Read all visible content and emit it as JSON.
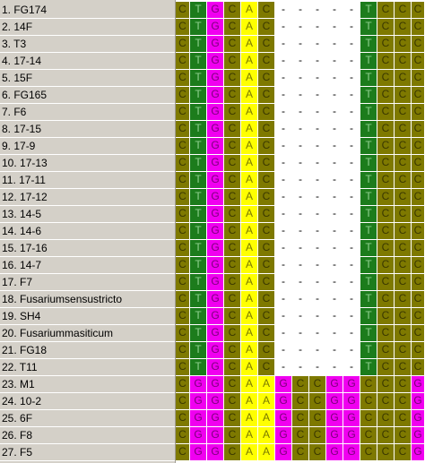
{
  "colors": {
    "C": "#7e7900",
    "T": "#1c7c1c",
    "G": "#f000f0",
    "A": "#ffff00",
    "-": "#ffffff"
  },
  "text_colors": {
    "C": "#3a3800",
    "T": "#8fd08f",
    "G": "#7a007a",
    "A": "#7a7a00",
    "-": "#000000"
  },
  "rows": [
    {
      "name": "1. FG174",
      "seq": "CTGCAC-----TCCC"
    },
    {
      "name": "2. 14F",
      "seq": "CTGCAC-----TCCC"
    },
    {
      "name": "3. T3",
      "seq": "CTGCAC-----TCCC"
    },
    {
      "name": "4. 17-14",
      "seq": "CTGCAC-----TCCC"
    },
    {
      "name": "5. 15F",
      "seq": "CTGCAC-----TCCC"
    },
    {
      "name": "6. FG165",
      "seq": "CTGCAC-----TCCC"
    },
    {
      "name": "7. F6",
      "seq": "CTGCAC-----TCCC"
    },
    {
      "name": "8. 17-15",
      "seq": "CTGCAC-----TCCC"
    },
    {
      "name": "9. 17-9",
      "seq": "CTGCAC-----TCCC"
    },
    {
      "name": "10. 17-13",
      "seq": "CTGCAC-----TCCC"
    },
    {
      "name": "11. 17-11",
      "seq": "CTGCAC-----TCCC"
    },
    {
      "name": "12. 17-12",
      "seq": "CTGCAC-----TCCC"
    },
    {
      "name": "13. 14-5",
      "seq": "CTGCAC-----TCCC"
    },
    {
      "name": "14. 14-6",
      "seq": "CTGCAC-----TCCC"
    },
    {
      "name": "15. 17-16",
      "seq": "CTGCAC-----TCCC"
    },
    {
      "name": "16. 14-7",
      "seq": "CTGCAC-----TCCC"
    },
    {
      "name": "17. F7",
      "seq": "CTGCAC-----TCCC"
    },
    {
      "name": "18. Fusariumsensustricto",
      "seq": "CTGCAC-----TCCC"
    },
    {
      "name": "19. SH4",
      "seq": "CTGCAC-----TCCC"
    },
    {
      "name": "20. Fusariummasiticum",
      "seq": "CTGCAC-----TCCC"
    },
    {
      "name": "21. FG18",
      "seq": "CTGCAC-----TCCC"
    },
    {
      "name": "22. T11",
      "seq": "CTGCAC-----TCCC"
    },
    {
      "name": "23. M1",
      "seq": "CGGCAAGCCGGCCCG"
    },
    {
      "name": "24. 10-2",
      "seq": "CGGCAAGCCGGCCCG"
    },
    {
      "name": "25. 6F",
      "seq": "CGGCAAGCCGGCCCG"
    },
    {
      "name": "26. F8",
      "seq": "CGGCAAGCCGGCCCG"
    },
    {
      "name": "27. F5",
      "seq": "CGGCAAGCCGGCCCG"
    }
  ]
}
